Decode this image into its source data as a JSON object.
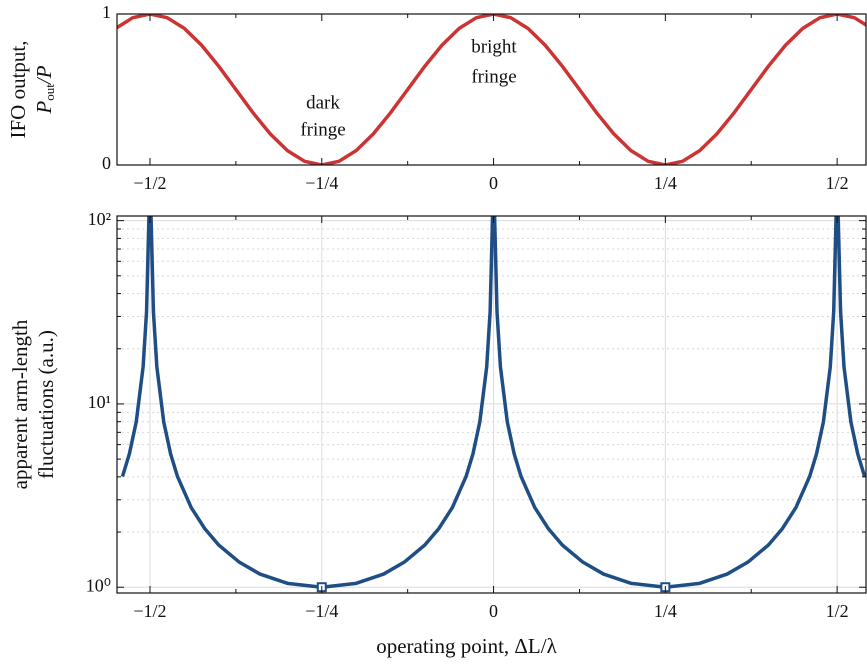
{
  "chart_data": [
    {
      "type": "line",
      "ylabel": [
        "IFO output,",
        [
          "P",
          "out",
          "/P"
        ]
      ],
      "x": [
        -0.55,
        -0.525,
        -0.5,
        -0.475,
        -0.45,
        -0.425,
        -0.4,
        -0.375,
        -0.35,
        -0.325,
        -0.3,
        -0.275,
        -0.25,
        -0.225,
        -0.2,
        -0.175,
        -0.15,
        -0.125,
        -0.1,
        -0.075,
        -0.05,
        -0.025,
        0,
        0.025,
        0.05,
        0.075,
        0.1,
        0.125,
        0.15,
        0.175,
        0.2,
        0.225,
        0.25,
        0.275,
        0.3,
        0.325,
        0.35,
        0.375,
        0.4,
        0.425,
        0.45,
        0.475,
        0.5,
        0.525,
        0.55
      ],
      "values": [
        0.9045,
        0.9755,
        1,
        0.9755,
        0.9045,
        0.7939,
        0.6545,
        0.5,
        0.3455,
        0.2061,
        0.0955,
        0.0245,
        0,
        0.0245,
        0.0955,
        0.2061,
        0.3455,
        0.5,
        0.6545,
        0.7939,
        0.9045,
        0.9755,
        1,
        0.9755,
        0.9045,
        0.7939,
        0.6545,
        0.5,
        0.3455,
        0.2061,
        0.0955,
        0.0245,
        0,
        0.0245,
        0.0955,
        0.2061,
        0.3455,
        0.5,
        0.6545,
        0.7939,
        0.9045,
        0.9755,
        1,
        0.9755,
        0.9045
      ],
      "color": "#cc3333",
      "xlim": [
        -0.548,
        0.542
      ],
      "ylim": [
        0,
        1
      ],
      "xticks": [
        {
          "value": -0.5,
          "label": "−1/2"
        },
        {
          "value": -0.25,
          "label": "−1/4"
        },
        0,
        {
          "value": 0.25,
          "label": "1/4"
        },
        {
          "value": 0.5,
          "label": "1/2"
        }
      ],
      "xminorticks": [
        -0.375,
        -0.125,
        0.125,
        0.375
      ],
      "yticks": [
        0,
        1
      ],
      "grid": false,
      "annotations": [
        [
          "dark",
          "fringe"
        ],
        [
          "bright",
          "fringe"
        ]
      ]
    },
    {
      "type": "line",
      "ylabel": [
        "apparent arm-length",
        "fluctuations (a.u.)"
      ],
      "xlabel": "operating point, ΔL/λ",
      "x": [
        -0.54,
        -0.53,
        -0.52,
        -0.51,
        -0.505,
        -0.5015,
        -0.4985,
        -0.495,
        -0.49,
        -0.48,
        -0.47,
        -0.46,
        -0.44,
        -0.42,
        -0.4,
        -0.37,
        -0.34,
        -0.3,
        -0.25,
        -0.2,
        -0.16,
        -0.13,
        -0.1,
        -0.08,
        -0.06,
        -0.04,
        -0.03,
        -0.02,
        -0.01,
        -0.005,
        -0.0015,
        0.0015,
        0.005,
        0.01,
        0.02,
        0.03,
        0.04,
        0.06,
        0.08,
        0.1,
        0.13,
        0.16,
        0.2,
        0.25,
        0.3,
        0.34,
        0.37,
        0.4,
        0.42,
        0.44,
        0.46,
        0.47,
        0.48,
        0.49,
        0.495,
        0.4985,
        0.5015,
        0.505,
        0.51,
        0.52,
        0.53,
        0.54
      ],
      "values": [
        4.02,
        5.34,
        7.98,
        15.92,
        31.83,
        106.1,
        106.1,
        31.83,
        15.92,
        7.98,
        5.34,
        4.02,
        2.72,
        2.08,
        1.7,
        1.37,
        1.18,
        1.05,
        1,
        1.05,
        1.18,
        1.37,
        1.7,
        2.08,
        2.72,
        4.02,
        5.34,
        7.98,
        15.92,
        31.83,
        106.1,
        106.1,
        31.83,
        15.92,
        7.98,
        5.34,
        4.02,
        2.72,
        2.08,
        1.7,
        1.37,
        1.18,
        1.05,
        1,
        1.05,
        1.18,
        1.37,
        1.7,
        2.08,
        2.72,
        4.02,
        5.34,
        7.98,
        15.92,
        31.83,
        106.1,
        106.1,
        31.83,
        15.92,
        7.98,
        5.34,
        4.02
      ],
      "color": "#1f4e85",
      "markers": {
        "x": [
          -0.25,
          0.25
        ],
        "values": [
          1,
          1
        ]
      },
      "xlim": [
        -0.548,
        0.542
      ],
      "ylim": [
        0.93,
        106
      ],
      "yscale": "log",
      "xticks": [
        {
          "value": -0.5,
          "label": "−1/2"
        },
        {
          "value": -0.25,
          "label": "−1/4"
        },
        0,
        {
          "value": 0.25,
          "label": "1/4"
        },
        {
          "value": 0.5,
          "label": "1/2"
        }
      ],
      "xminorticks": [
        -0.375,
        -0.125,
        0.125,
        0.375
      ],
      "yticks": [
        {
          "value": 1,
          "label": "10⁰"
        },
        {
          "value": 10,
          "label": "10¹"
        },
        {
          "value": 100,
          "label": "10²"
        }
      ],
      "yminorticks": [
        2,
        3,
        4,
        5,
        6,
        7,
        8,
        9,
        20,
        30,
        40,
        50,
        60,
        70,
        80,
        90
      ],
      "grid": true
    }
  ]
}
